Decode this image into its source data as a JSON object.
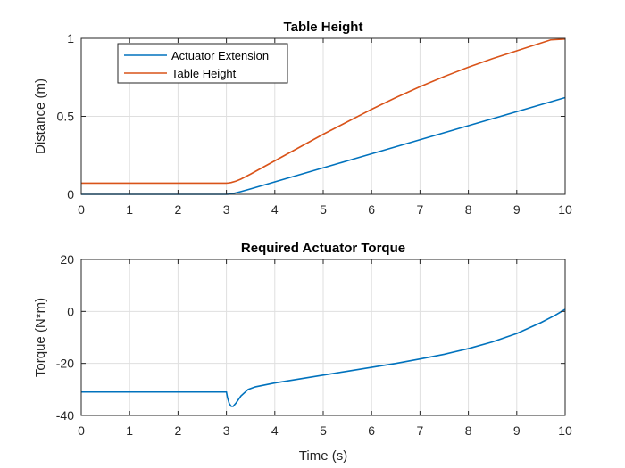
{
  "chart_data": [
    {
      "type": "line",
      "title": "Table Height",
      "xlabel": "",
      "ylabel": "Distance (m)",
      "xlim": [
        0,
        10
      ],
      "ylim": [
        0,
        1
      ],
      "xticks": [
        0,
        1,
        2,
        3,
        4,
        5,
        6,
        7,
        8,
        9,
        10
      ],
      "yticks": [
        0,
        0.5,
        1
      ],
      "grid": true,
      "legend": "top-left",
      "series": [
        {
          "name": "Actuator Extension",
          "color": "#0072BD",
          "x": [
            0,
            1,
            2,
            3,
            3.05,
            3.1,
            3.2,
            3.3,
            3.5,
            4,
            4.5,
            5,
            5.5,
            6,
            6.5,
            7,
            7.5,
            8,
            8.5,
            9,
            9.5,
            10
          ],
          "y": [
            0,
            0,
            0,
            0,
            0.001,
            0.003,
            0.01,
            0.018,
            0.035,
            0.08,
            0.125,
            0.17,
            0.215,
            0.26,
            0.305,
            0.35,
            0.395,
            0.44,
            0.485,
            0.53,
            0.575,
            0.62
          ]
        },
        {
          "name": "Table Height",
          "color": "#D95319",
          "x": [
            0,
            1,
            2,
            3,
            3.05,
            3.1,
            3.2,
            3.3,
            3.5,
            4,
            4.5,
            5,
            5.5,
            6,
            6.5,
            7,
            7.5,
            8,
            8.5,
            9,
            9.5,
            9.7,
            10
          ],
          "y": [
            0.072,
            0.072,
            0.072,
            0.072,
            0.073,
            0.076,
            0.085,
            0.098,
            0.13,
            0.215,
            0.3,
            0.385,
            0.465,
            0.545,
            0.62,
            0.69,
            0.755,
            0.815,
            0.87,
            0.92,
            0.97,
            0.99,
            0.995
          ]
        }
      ]
    },
    {
      "type": "line",
      "title": "Required Actuator Torque",
      "xlabel": "Time (s)",
      "ylabel": "Torque (N*m)",
      "xlim": [
        0,
        10
      ],
      "ylim": [
        -40,
        20
      ],
      "xticks": [
        0,
        1,
        2,
        3,
        4,
        5,
        6,
        7,
        8,
        9,
        10
      ],
      "yticks": [
        -40,
        -20,
        0,
        20
      ],
      "grid": true,
      "series": [
        {
          "color": "#0072BD",
          "x": [
            0,
            1,
            2,
            3,
            3.02,
            3.06,
            3.1,
            3.14,
            3.2,
            3.3,
            3.45,
            3.6,
            4,
            4.5,
            5,
            5.5,
            6,
            6.5,
            7,
            7.5,
            8,
            8.5,
            9,
            9.5,
            9.8,
            10
          ],
          "y": [
            -31,
            -31,
            -31,
            -31,
            -33,
            -35.5,
            -36.5,
            -36.5,
            -35.2,
            -32.5,
            -30,
            -29,
            -27.5,
            -26,
            -24.5,
            -23,
            -21.5,
            -20,
            -18.3,
            -16.5,
            -14.3,
            -11.7,
            -8.5,
            -4.3,
            -1.4,
            0.8
          ]
        }
      ]
    }
  ]
}
